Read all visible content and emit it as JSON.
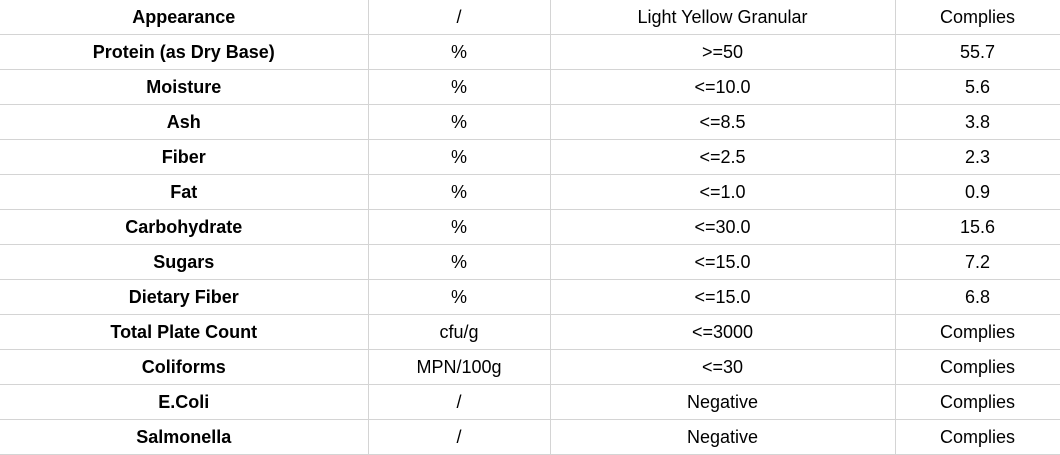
{
  "rows": [
    {
      "item": "Appearance",
      "unit": "/",
      "spec": "Light Yellow Granular",
      "result": "Complies"
    },
    {
      "item": "Protein (as Dry Base)",
      "unit": "%",
      "spec": ">=50",
      "result": "55.7"
    },
    {
      "item": "Moisture",
      "unit": "%",
      "spec": "<=10.0",
      "result": "5.6"
    },
    {
      "item": "Ash",
      "unit": "%",
      "spec": "<=8.5",
      "result": "3.8"
    },
    {
      "item": "Fiber",
      "unit": "%",
      "spec": "<=2.5",
      "result": "2.3"
    },
    {
      "item": "Fat",
      "unit": "%",
      "spec": "<=1.0",
      "result": "0.9"
    },
    {
      "item": "Carbohydrate",
      "unit": "%",
      "spec": "<=30.0",
      "result": "15.6"
    },
    {
      "item": "Sugars",
      "unit": "%",
      "spec": "<=15.0",
      "result": "7.2"
    },
    {
      "item": "Dietary Fiber",
      "unit": "%",
      "spec": "<=15.0",
      "result": "6.8"
    },
    {
      "item": "Total Plate Count",
      "unit": "cfu/g",
      "spec": "<=3000",
      "result": "Complies"
    },
    {
      "item": "Coliforms",
      "unit": "MPN/100g",
      "spec": "<=30",
      "result": "Complies"
    },
    {
      "item": "E.Coli",
      "unit": "/",
      "spec": "Negative",
      "result": "Complies"
    },
    {
      "item": "Salmonella",
      "unit": "/",
      "spec": "Negative",
      "result": "Complies"
    }
  ]
}
